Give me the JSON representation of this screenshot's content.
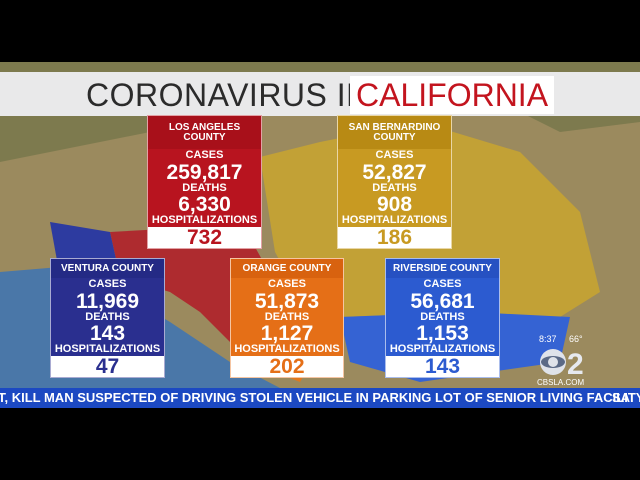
{
  "title": {
    "left": "CORONAVIRUS IN",
    "right": "CALIFORNIA"
  },
  "labels": {
    "cases": "CASES",
    "deaths": "DEATHS",
    "hospitalizations": "HOSPITALIZATIONS"
  },
  "counties": [
    {
      "name": "LOS ANGELES COUNTY",
      "cases": "259,817",
      "deaths": "6,330",
      "hospitalizations": "732"
    },
    {
      "name": "SAN BERNARDINO COUNTY",
      "cases": "52,827",
      "deaths": "908",
      "hospitalizations": "186"
    },
    {
      "name": "VENTURA COUNTY",
      "cases": "11,969",
      "deaths": "143",
      "hospitalizations": "47"
    },
    {
      "name": "ORANGE COUNTY",
      "cases": "51,873",
      "deaths": "1,127",
      "hospitalizations": "202"
    },
    {
      "name": "RIVERSIDE COUNTY",
      "cases": "56,681",
      "deaths": "1,153",
      "hospitalizations": "143"
    }
  ],
  "ticker": {
    "text": "T, KILL MAN SUSPECTED OF DRIVING STOLEN VEHICLE IN PARKING LOT OF SENIOR LIVING FACILITY",
    "next": "SA"
  },
  "station": {
    "time": "8:37",
    "temperature": "66°",
    "channel": "2",
    "website": "CBSLA.COM"
  }
}
